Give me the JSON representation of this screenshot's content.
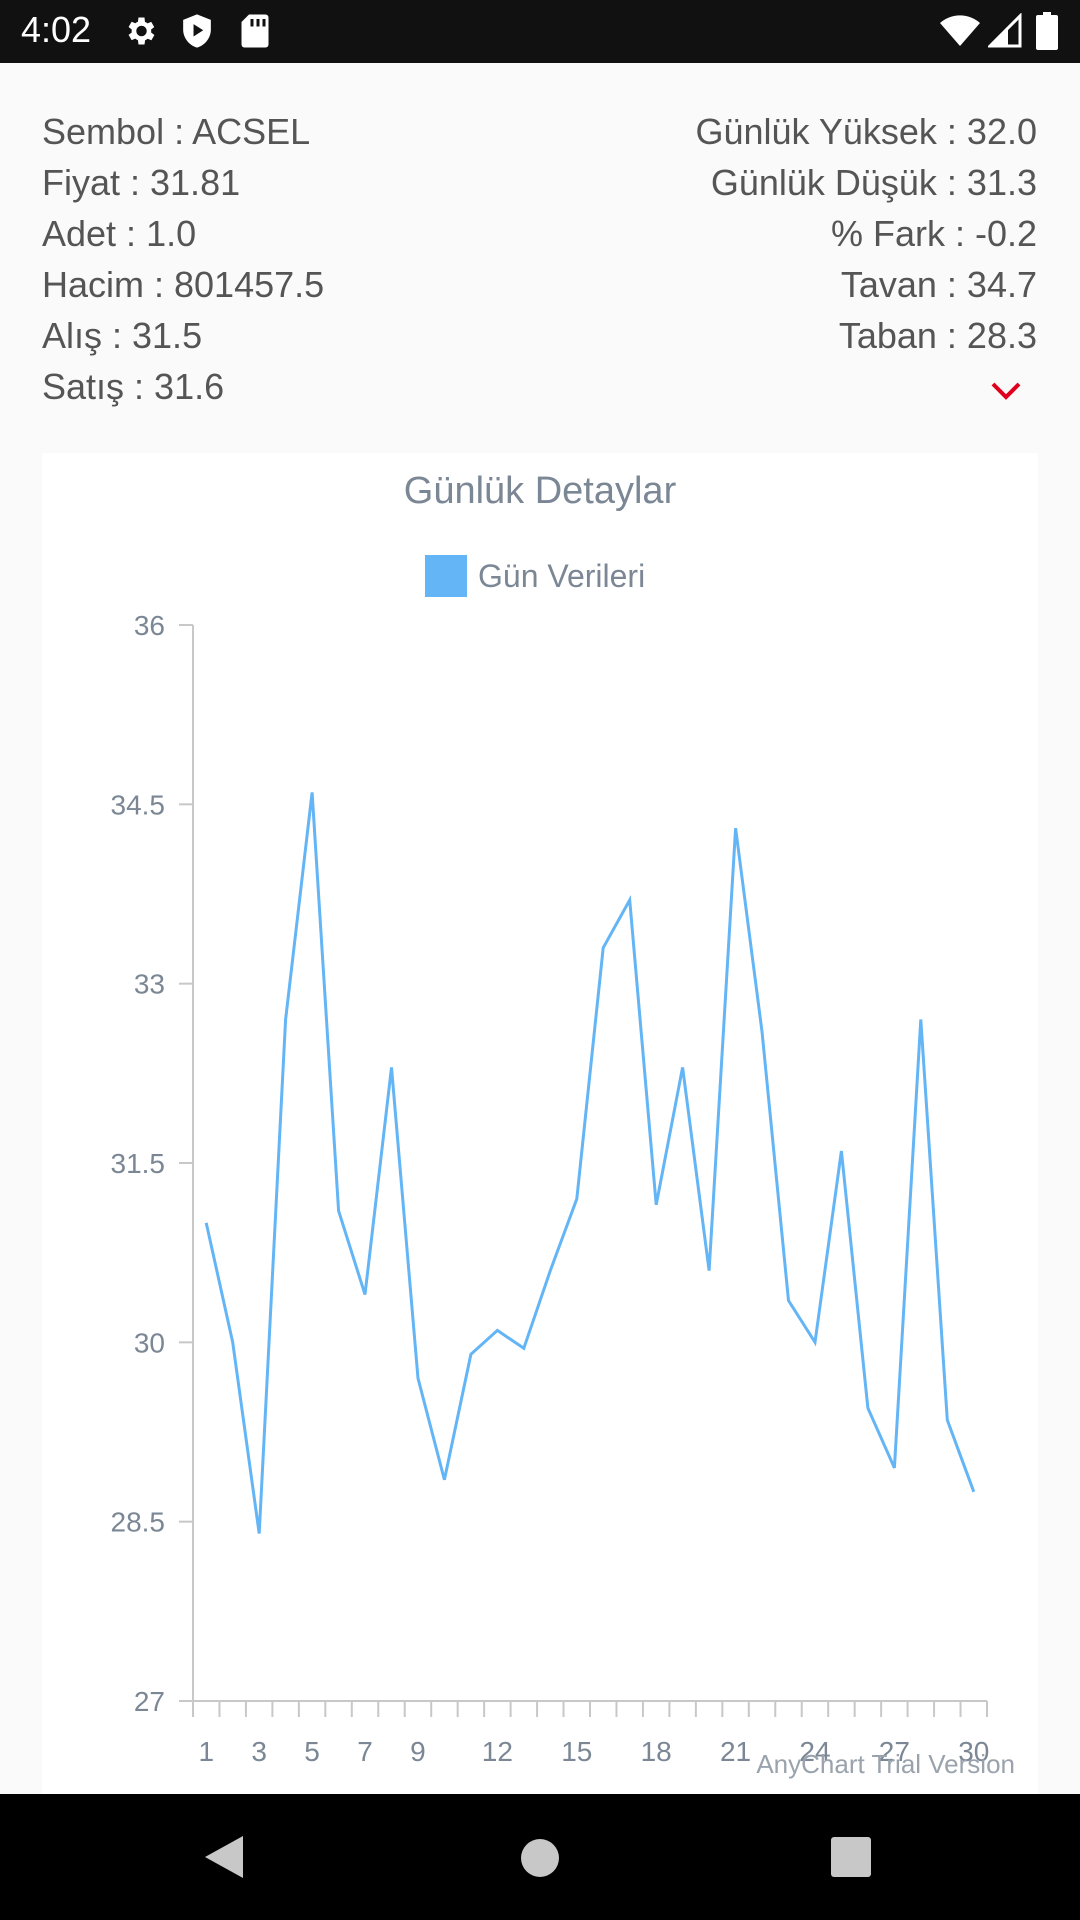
{
  "status_bar": {
    "time": "4:02",
    "icons": [
      "gear-icon",
      "shield-icon",
      "sd-card-icon",
      "wifi-icon",
      "signal-icon",
      "battery-icon"
    ]
  },
  "stock_info": {
    "left": [
      {
        "label": "Sembol",
        "value": "ACSEL",
        "text": "Sembol : ACSEL"
      },
      {
        "label": "Fiyat",
        "value": "31.81",
        "text": "Fiyat : 31.81"
      },
      {
        "label": "Adet",
        "value": "1.0",
        "text": "Adet : 1.0"
      },
      {
        "label": "Hacim",
        "value": "801457.5",
        "text": "Hacim : 801457.5"
      },
      {
        "label": "Alış",
        "value": "31.5",
        "text": "Alış : 31.5"
      },
      {
        "label": "Satış",
        "value": "31.6",
        "text": "Satış : 31.6"
      }
    ],
    "right": [
      {
        "label": "Günlük Yüksek",
        "value": "32.0",
        "text": "Günlük Yüksek : 32.0"
      },
      {
        "label": "Günlük Düşük",
        "value": "31.3",
        "text": "Günlük Düşük : 31.3"
      },
      {
        "label": "% Fark",
        "value": "-0.2",
        "text": "% Fark : -0.2"
      },
      {
        "label": "Tavan",
        "value": "34.7",
        "text": "Tavan : 34.7"
      },
      {
        "label": "Taban",
        "value": "28.3",
        "text": "Taban : 28.3"
      }
    ],
    "chevron_color": "#e0001b"
  },
  "chart_data": {
    "type": "line",
    "title": "Günlük Detaylar",
    "xlabel": "",
    "ylabel": "",
    "x": [
      1,
      2,
      3,
      4,
      5,
      6,
      7,
      8,
      9,
      10,
      11,
      12,
      13,
      14,
      15,
      16,
      17,
      18,
      19,
      20,
      21,
      22,
      23,
      24,
      25,
      26,
      27,
      28,
      29,
      30
    ],
    "x_tick_labels": [
      "1",
      "3",
      "5",
      "7",
      "9",
      "12",
      "15",
      "18",
      "21",
      "24",
      "27",
      "30"
    ],
    "y_tick_labels": [
      "36",
      "34.5",
      "33",
      "31.5",
      "30",
      "28.5",
      "27"
    ],
    "ylim": [
      27,
      36
    ],
    "legend": "top-center",
    "grid": false,
    "series": [
      {
        "name": "Gün Verileri",
        "color": "#64b5f6",
        "values": [
          31.0,
          30.0,
          28.4,
          32.7,
          34.6,
          31.1,
          30.4,
          32.3,
          29.7,
          28.85,
          29.9,
          30.1,
          29.95,
          30.6,
          31.2,
          33.3,
          33.7,
          31.15,
          32.3,
          30.6,
          34.3,
          32.6,
          30.35,
          30.0,
          31.6,
          29.45,
          28.95,
          32.7,
          29.35,
          28.75
        ]
      }
    ],
    "watermark": "AnyChart Trial Version"
  },
  "colors": {
    "status_bar": "#111111",
    "nav_bar": "#000000",
    "line": "#64b5f6",
    "axis_text": "#7b8794"
  }
}
